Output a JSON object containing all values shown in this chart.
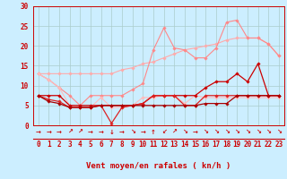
{
  "x": [
    0,
    1,
    2,
    3,
    4,
    5,
    6,
    7,
    8,
    9,
    10,
    11,
    12,
    13,
    14,
    15,
    16,
    17,
    18,
    19,
    20,
    21,
    22,
    23
  ],
  "background_color": "#cceeff",
  "grid_color": "#aacccc",
  "xlabel": "Vent moyen/en rafales ( kn/h )",
  "ylim": [
    0,
    30
  ],
  "yticks": [
    0,
    5,
    10,
    15,
    20,
    25,
    30
  ],
  "series": [
    {
      "name": "max_rafales",
      "color": "#ffaaaa",
      "linewidth": 0.8,
      "marker": "D",
      "markersize": 1.8,
      "y": [
        13.0,
        13.0,
        13.0,
        13.0,
        13.0,
        13.0,
        13.0,
        13.0,
        14.0,
        14.5,
        15.5,
        16.0,
        17.0,
        18.0,
        19.0,
        19.5,
        20.0,
        20.5,
        21.5,
        22.0,
        22.0,
        22.0,
        20.5,
        17.5
      ]
    },
    {
      "name": "moy_rafales",
      "color": "#ff8888",
      "linewidth": 0.8,
      "marker": "D",
      "markersize": 1.8,
      "y": [
        13.0,
        11.5,
        9.5,
        7.5,
        5.0,
        7.5,
        7.5,
        7.5,
        7.5,
        9.0,
        10.5,
        19.0,
        24.5,
        19.5,
        19.0,
        17.0,
        17.0,
        19.5,
        26.0,
        26.5,
        22.0,
        22.0,
        20.5,
        17.5
      ]
    },
    {
      "name": "min_rafales",
      "color": "#ffbbbb",
      "linewidth": 0.8,
      "marker": "D",
      "markersize": 1.8,
      "y": [
        13.0,
        11.5,
        9.5,
        5.0,
        4.5,
        4.5,
        7.0,
        4.5,
        4.5,
        5.0,
        7.0,
        7.0,
        7.5,
        7.5,
        5.5,
        7.5,
        7.0,
        7.0,
        7.0,
        7.0,
        7.0,
        7.0,
        7.0,
        7.0
      ]
    },
    {
      "name": "max_vent",
      "color": "#cc0000",
      "linewidth": 0.9,
      "marker": "D",
      "markersize": 1.8,
      "y": [
        7.5,
        7.5,
        7.5,
        5.0,
        5.0,
        5.0,
        5.0,
        5.0,
        5.0,
        5.0,
        5.5,
        7.5,
        7.5,
        7.5,
        7.5,
        7.5,
        9.5,
        11.0,
        11.0,
        13.0,
        11.0,
        15.5,
        7.5,
        7.5
      ]
    },
    {
      "name": "moy_vent",
      "color": "#dd2222",
      "linewidth": 0.9,
      "marker": "D",
      "markersize": 1.8,
      "y": [
        7.5,
        6.5,
        6.0,
        4.5,
        4.5,
        4.5,
        5.0,
        0.5,
        4.5,
        5.0,
        5.5,
        7.5,
        7.5,
        7.5,
        5.0,
        5.0,
        7.5,
        7.5,
        7.5,
        7.5,
        7.5,
        7.5,
        7.5,
        7.5
      ]
    },
    {
      "name": "min_vent",
      "color": "#aa0000",
      "linewidth": 0.9,
      "marker": "D",
      "markersize": 1.8,
      "y": [
        7.5,
        6.0,
        5.5,
        4.5,
        4.5,
        4.5,
        5.0,
        5.0,
        5.0,
        5.0,
        5.0,
        5.0,
        5.0,
        5.0,
        5.0,
        5.0,
        5.5,
        5.5,
        5.5,
        7.5,
        7.5,
        7.5,
        7.5,
        7.5
      ]
    }
  ],
  "arrows": [
    "→",
    "→",
    "→",
    "↗",
    "↗",
    "→",
    "→",
    "↓",
    "→",
    "↘",
    "→",
    "↑",
    "↙",
    "↗",
    "↘",
    "→",
    "↘",
    "↘",
    "↘",
    "↘",
    "↘",
    "↘",
    "↘",
    "↘"
  ],
  "tick_fontsize": 5.5,
  "axis_fontsize": 6.5,
  "arrow_fontsize": 5
}
